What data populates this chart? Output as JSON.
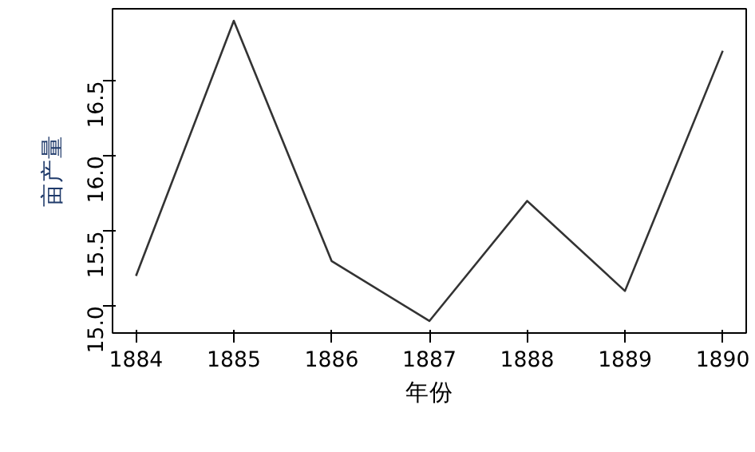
{
  "chart_data": {
    "type": "line",
    "xlabel": "年份",
    "ylabel": "亩产量",
    "x": [
      1884,
      1885,
      1886,
      1887,
      1888,
      1889,
      1890
    ],
    "series": [
      {
        "color": "#333333",
        "values": [
          15.2,
          16.9,
          15.3,
          14.9,
          15.7,
          15.1,
          16.7
        ]
      }
    ],
    "xlim": [
      1883.76,
      1890.24
    ],
    "ylim": [
      14.82,
      16.98
    ],
    "xticks": [
      1884,
      1885,
      1886,
      1887,
      1888,
      1889,
      1890
    ],
    "yticks": [
      {
        "value": 15,
        "label": "15.0"
      },
      15.5,
      {
        "value": 16,
        "label": "16.0"
      },
      16.5
    ],
    "grid": false,
    "marker": "none",
    "line_style": "solid"
  }
}
